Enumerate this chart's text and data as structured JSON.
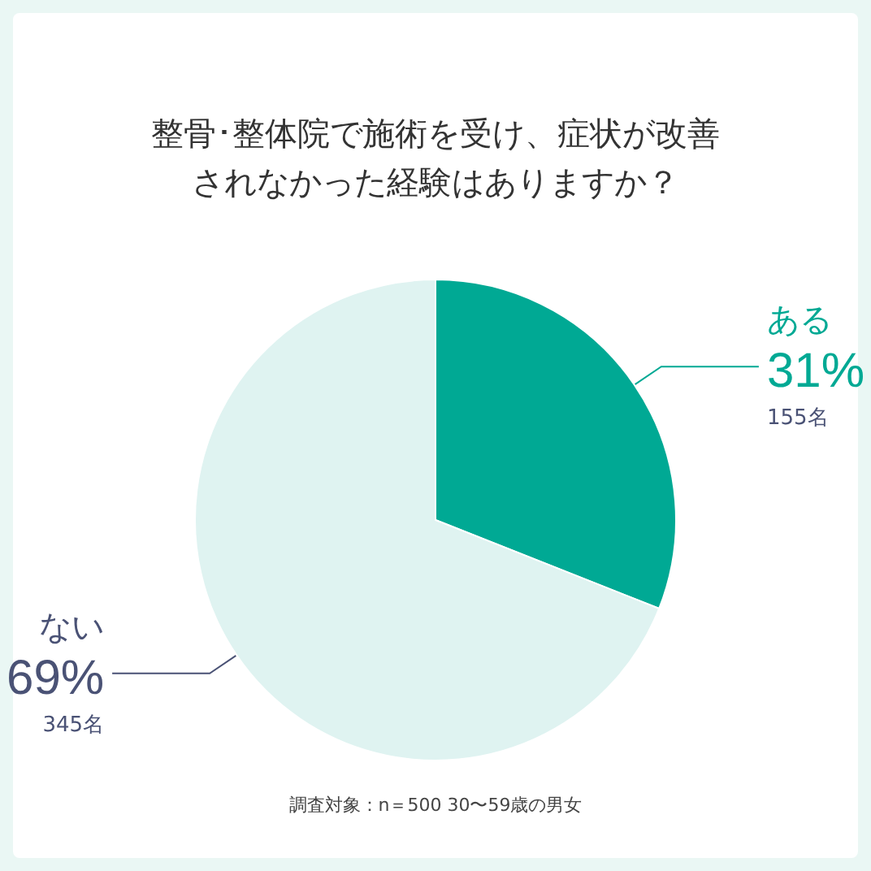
{
  "chart_data": {
    "type": "pie",
    "title": "整骨･整体院で施術を受け、症状が改善されなかった経験はありますか？",
    "categories": [
      "ある",
      "ない"
    ],
    "values": [
      31,
      69
    ],
    "colors": [
      "#00a994",
      "#dff3f1"
    ],
    "value_labels": [
      "31%",
      "69%"
    ],
    "annotations": [
      "155名",
      "345名",
      "調査対象：n＝500 30〜59歳の男女"
    ],
    "legend": false
  }
}
